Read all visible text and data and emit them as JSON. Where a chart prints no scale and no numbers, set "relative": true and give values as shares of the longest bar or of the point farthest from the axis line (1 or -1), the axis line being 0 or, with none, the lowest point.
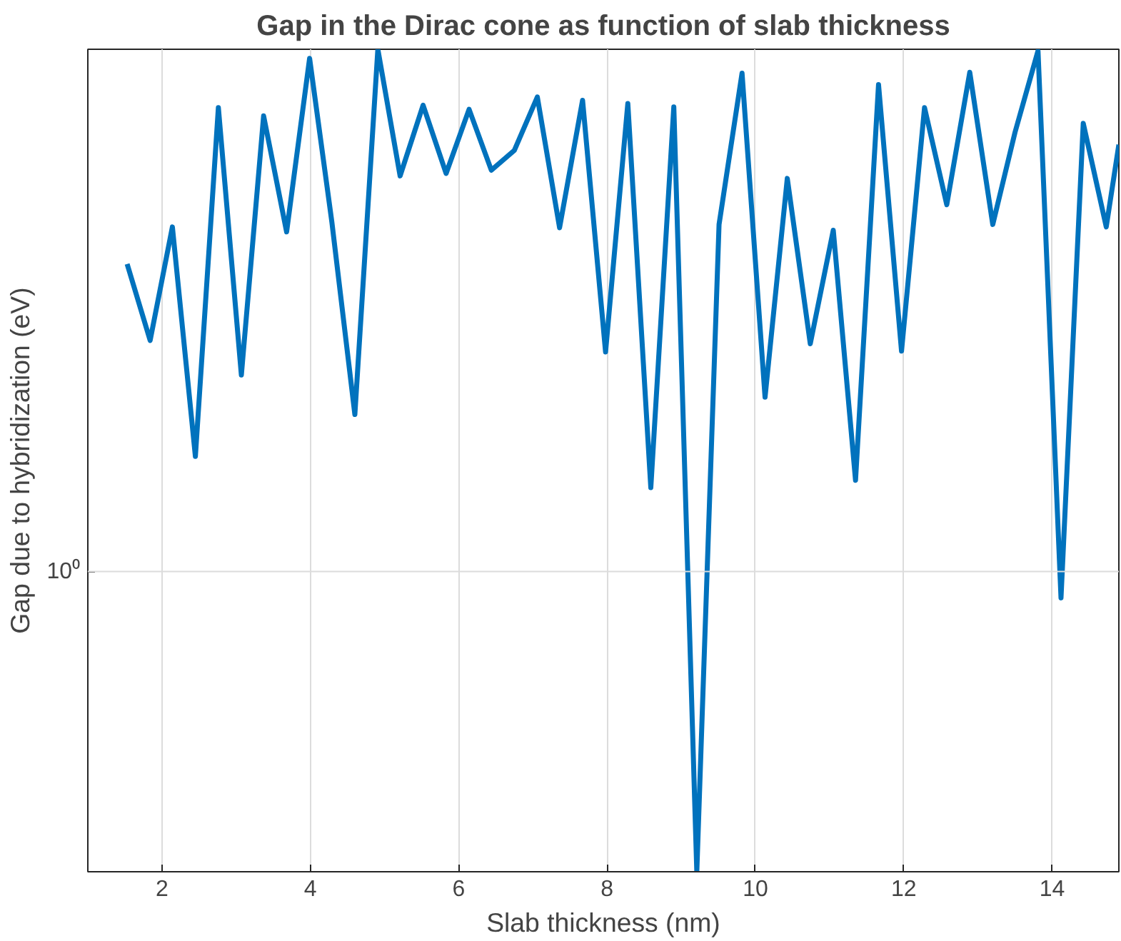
{
  "chart_data": {
    "type": "line",
    "title": "Gap in the Dirac cone as function of slab thickness",
    "xlabel": "Slab thickness (nm)",
    "ylabel": "Gap due to hybridization (eV)",
    "x": [
      1.53,
      1.84,
      2.14,
      2.45,
      2.76,
      3.07,
      3.37,
      3.68,
      3.99,
      4.29,
      4.6,
      4.91,
      5.21,
      5.52,
      5.83,
      6.14,
      6.44,
      6.75,
      7.06,
      7.36,
      7.67,
      7.98,
      8.28,
      8.59,
      8.9,
      9.21,
      9.51,
      9.82,
      10.13,
      10.43,
      10.74,
      11.05,
      11.35,
      11.66,
      11.97,
      12.28,
      12.58,
      12.89,
      13.2,
      13.5,
      13.81,
      14.12,
      14.42,
      14.73,
      14.9
    ],
    "series": [
      {
        "color": "#0072bd",
        "values": [
          0.739,
          0.646,
          0.784,
          0.505,
          0.929,
          0.604,
          0.919,
          0.778,
          0.989,
          0.79,
          0.556,
          1.0,
          0.846,
          0.932,
          0.849,
          0.927,
          0.853,
          0.877,
          0.942,
          0.783,
          0.938,
          0.632,
          0.934,
          0.467,
          0.93,
          0,
          0.787,
          0.971,
          0.577,
          0.843,
          0.642,
          0.78,
          0.476,
          0.957,
          0.633,
          0.929,
          0.811,
          0.972,
          0.787,
          0.899,
          0.998,
          0.333,
          0.91,
          0.784,
          0.884
        ]
      }
    ],
    "relative": true,
    "xlim": [
      1,
      14.9
    ],
    "xticks": [
      2,
      4,
      6,
      8,
      10,
      12,
      14
    ],
    "ref_lines": [
      {
        "axis": "y",
        "value": 0.365,
        "label": "10⁰",
        "color": "#dcdcdc"
      }
    ],
    "grid": "x",
    "line_style": "solid",
    "marker": "none"
  }
}
